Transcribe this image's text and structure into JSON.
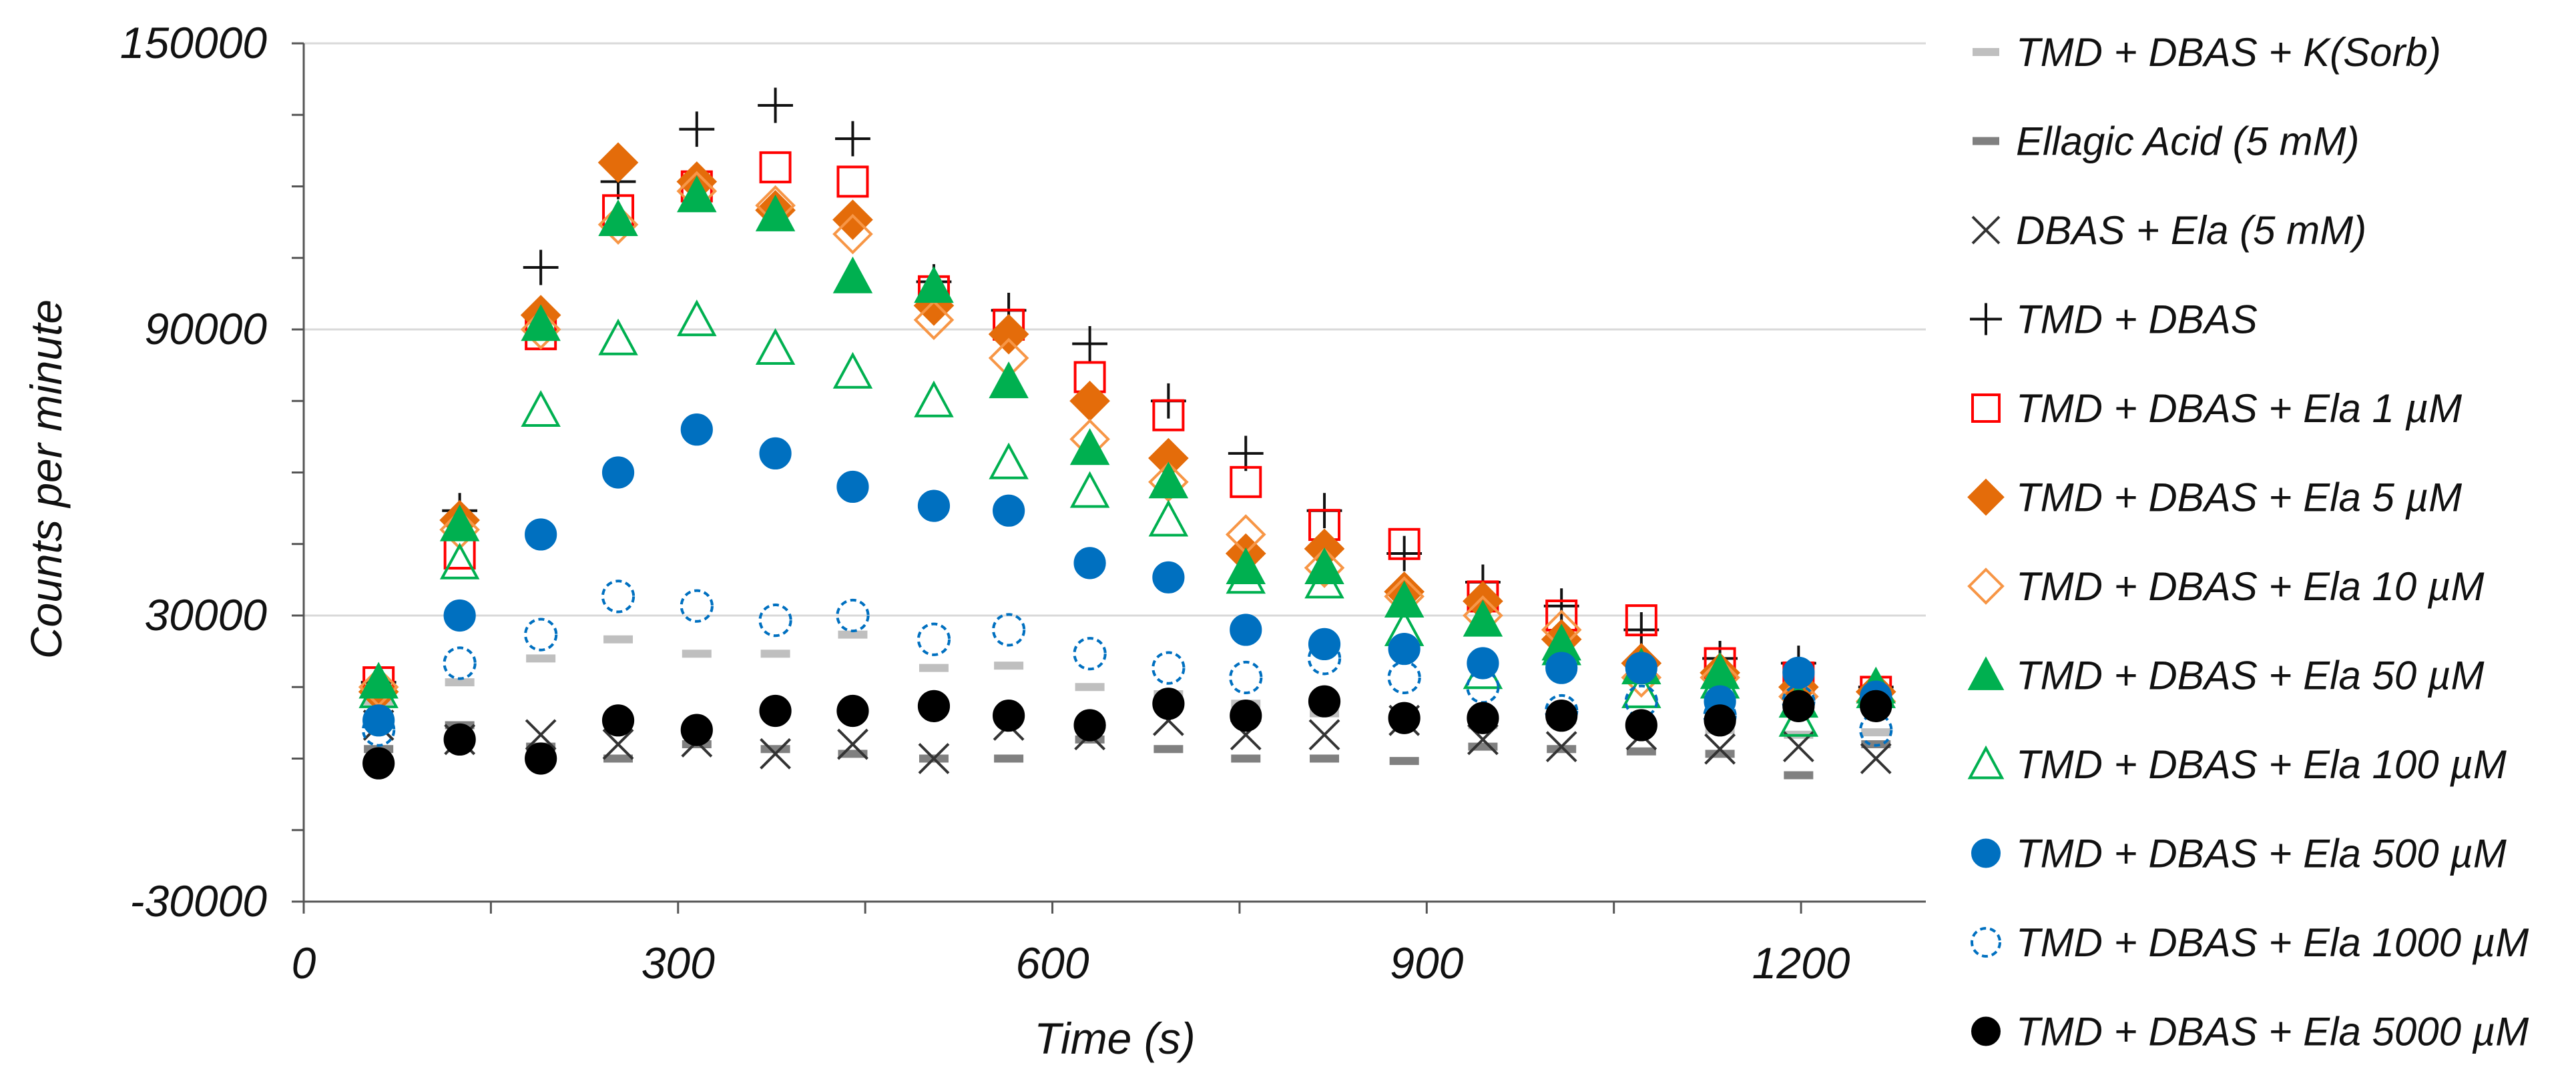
{
  "chart_data": {
    "type": "scatter",
    "xlabel": "Time (s)",
    "ylabel": "Counts per minute",
    "xlim": [
      0,
      1300
    ],
    "ylim": [
      -30000,
      150000
    ],
    "xticks": [
      0,
      300,
      600,
      900,
      1200
    ],
    "yticks": [
      -30000,
      30000,
      90000,
      150000
    ],
    "gridlines": "horizontal",
    "legend_position": "right",
    "x": [
      60,
      125,
      190,
      252,
      315,
      378,
      440,
      505,
      565,
      630,
      693,
      755,
      818,
      882,
      945,
      1008,
      1072,
      1135,
      1198,
      1260
    ],
    "series": [
      {
        "name": "TMD + DBAS + K(Sorb)",
        "marker": "dash",
        "color": "#bfbfbf",
        "values": [
          12000,
          16000,
          21000,
          25000,
          22000,
          22000,
          26000,
          19000,
          19500,
          15000,
          13500,
          11500,
          9500,
          8500,
          7000,
          8000,
          7500,
          6000,
          5000,
          5500
        ]
      },
      {
        "name": "Ellagic Acid (5 mM)",
        "marker": "dash",
        "color": "#808080",
        "values": [
          2000,
          7000,
          2500,
          0,
          3000,
          2000,
          1000,
          0,
          0,
          4000,
          2000,
          0,
          0,
          -500,
          2500,
          2000,
          1500,
          1000,
          -3500,
          3000
        ]
      },
      {
        "name": "DBAS + Ela (5 mM)",
        "marker": "x",
        "color": "#333333",
        "values": [
          7000,
          4000,
          5000,
          3000,
          3500,
          1000,
          3000,
          0,
          7000,
          5000,
          8000,
          5000,
          5000,
          8000,
          4000,
          2500,
          5000,
          2000,
          2500,
          0
        ]
      },
      {
        "name": "TMD + DBAS",
        "marker": "plus",
        "color": "#111111",
        "values": [
          16000,
          52000,
          103000,
          121000,
          132000,
          137000,
          130000,
          100000,
          94000,
          87000,
          75000,
          64000,
          52000,
          43000,
          37000,
          32000,
          27000,
          21000,
          20000,
          15000
        ]
      },
      {
        "name": "TMD + DBAS + Ela 1 µM",
        "marker": "square-open",
        "color": "#ff0000",
        "values": [
          16000,
          43000,
          89000,
          115000,
          120000,
          124000,
          121000,
          98000,
          91000,
          80000,
          72000,
          58000,
          49000,
          45000,
          34000,
          30000,
          29000,
          20000,
          17000,
          14000
        ]
      },
      {
        "name": "TMD + DBAS + Ela 5 µM",
        "marker": "diamond",
        "color": "#e46c0a",
        "values": [
          14000,
          50000,
          93000,
          125000,
          121000,
          115000,
          113000,
          95000,
          89000,
          75000,
          63000,
          43000,
          44000,
          35000,
          33000,
          25000,
          20000,
          18000,
          15000,
          14000
        ]
      },
      {
        "name": "TMD + DBAS + Ela 10 µM",
        "marker": "diamond-open",
        "color": "#f79646",
        "values": [
          15000,
          48000,
          90000,
          112000,
          119000,
          116000,
          110000,
          92000,
          84000,
          67000,
          58000,
          47000,
          40000,
          34000,
          30000,
          27000,
          17000,
          17000,
          13000,
          12000
        ]
      },
      {
        "name": "TMD + DBAS + Ela 50 µM",
        "marker": "triangle",
        "color": "#00b050",
        "values": [
          16000,
          49000,
          91000,
          113000,
          118000,
          114000,
          101000,
          99000,
          79000,
          65000,
          58000,
          40000,
          40000,
          33000,
          29000,
          24000,
          19000,
          18000,
          12000,
          15000
        ]
      },
      {
        "name": "TMD + DBAS + Ela 100 µM",
        "marker": "triangle-open",
        "color": "#00b050",
        "values": [
          14000,
          41000,
          73000,
          88000,
          92000,
          86000,
          81000,
          75000,
          62000,
          56000,
          50000,
          38000,
          37000,
          27000,
          18000,
          23000,
          14000,
          16000,
          8000,
          14000
        ]
      },
      {
        "name": "TMD + DBAS + Ela 500 µM",
        "marker": "circle",
        "color": "#0070c0",
        "values": [
          8000,
          30000,
          47000,
          60000,
          69000,
          64000,
          57000,
          53000,
          52000,
          41000,
          38000,
          27000,
          24000,
          23000,
          20000,
          19000,
          19000,
          12000,
          18000,
          13000
        ]
      },
      {
        "name": "TMD + DBAS + Ela 1000 µM",
        "marker": "circle-open",
        "color": "#0070c0",
        "values": [
          6000,
          20000,
          26000,
          34000,
          32000,
          29000,
          30000,
          25000,
          27000,
          22000,
          19000,
          17000,
          21000,
          17000,
          15000,
          10000,
          12000,
          9000,
          12000,
          6000
        ]
      },
      {
        "name": "TMD + DBAS + Ela 5000 µM",
        "marker": "circle",
        "color": "#000000",
        "values": [
          -1000,
          4000,
          0,
          8000,
          6000,
          10000,
          10000,
          11000,
          9000,
          7000,
          11500,
          9000,
          12000,
          8500,
          8500,
          9000,
          7000,
          8000,
          11000,
          11000
        ]
      }
    ]
  }
}
